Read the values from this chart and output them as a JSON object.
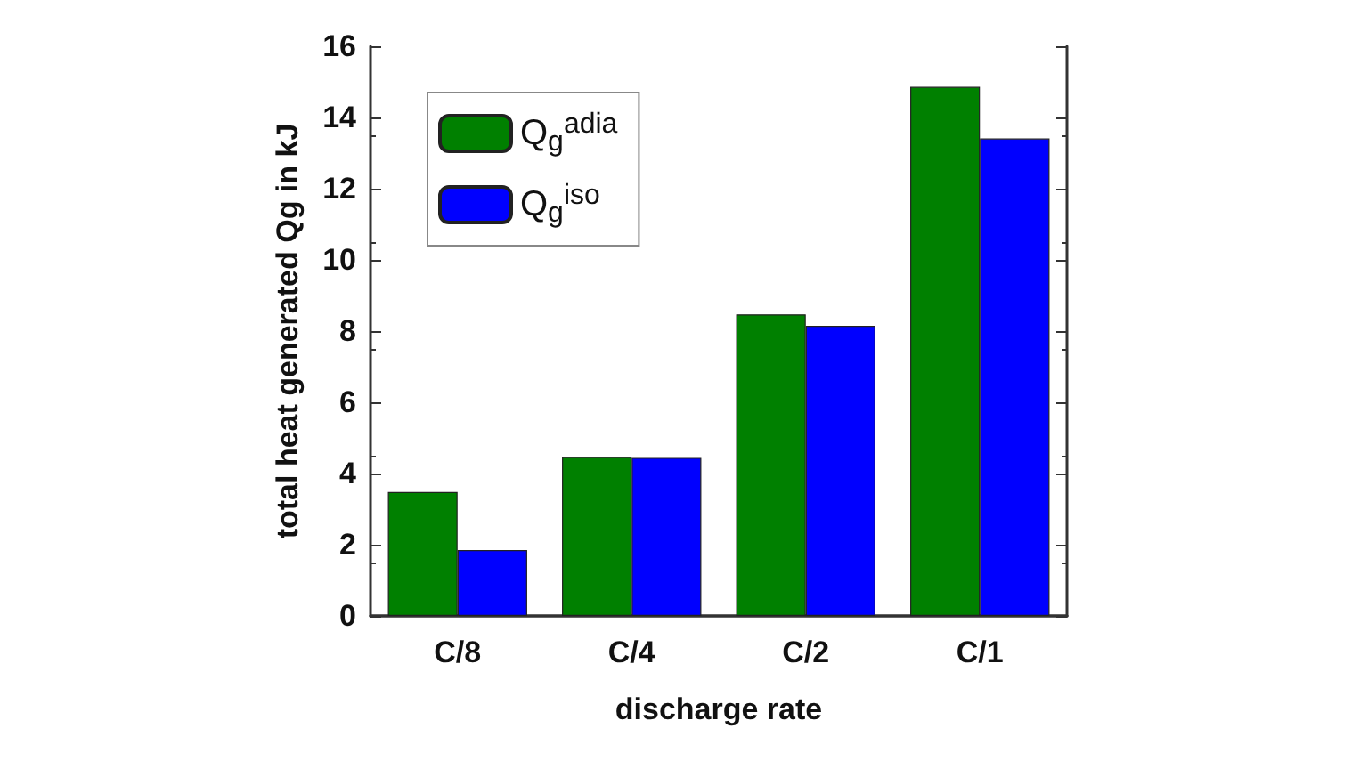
{
  "chart_data": {
    "type": "bar",
    "xlabel": "discharge rate",
    "ylabel": "total heat generated Qg in kJ",
    "categories": [
      "C/8",
      "C/4",
      "C/2",
      "C/1"
    ],
    "series": [
      {
        "name": "Q$_{g}$$^{adia}$",
        "color": "#008000",
        "values": [
          3.48,
          4.46,
          8.47,
          14.86
        ]
      },
      {
        "name": "Q$_{g}$$^{iso}$",
        "color": "#0000ff",
        "values": [
          1.85,
          4.44,
          8.15,
          13.41
        ]
      }
    ],
    "ylim": [
      0,
      16
    ],
    "yticks": [
      0,
      2,
      4,
      6,
      8,
      10,
      12,
      14,
      16
    ],
    "grid": false,
    "legend": "top left"
  }
}
